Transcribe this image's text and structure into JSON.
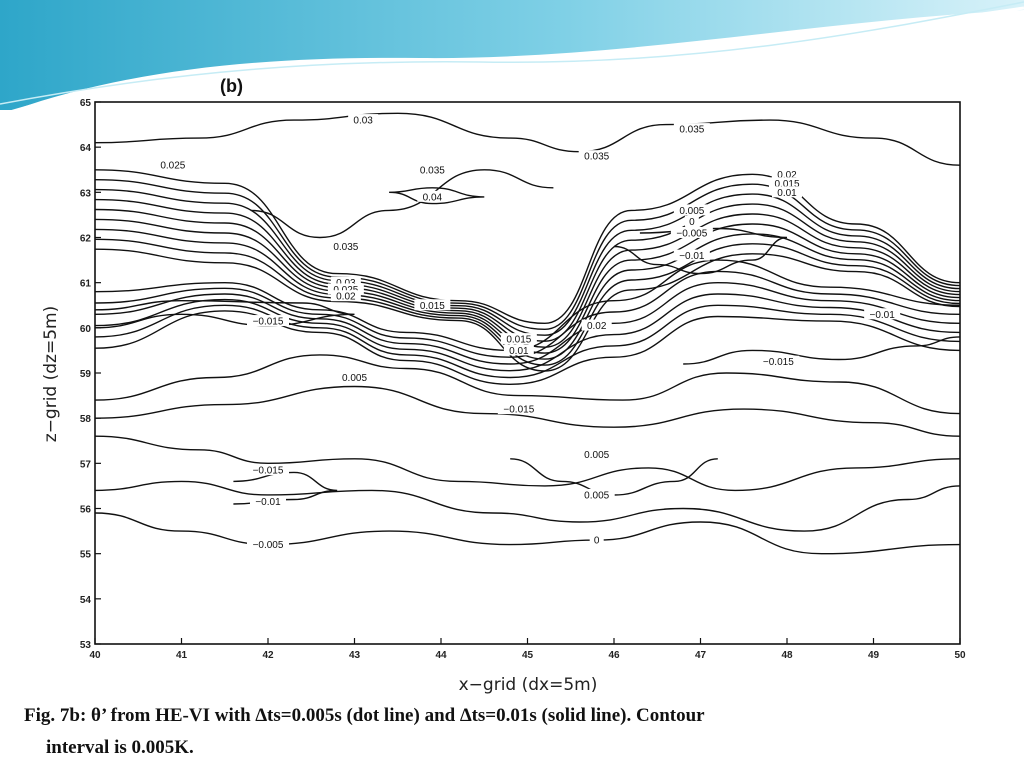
{
  "caption": {
    "line1": "Fig. 7b: θ’ from HE-VI with ∆ts=0.005s (dot line) and ∆ts=0.01s (solid line). Contour",
    "line2": "interval is 0.005K."
  },
  "chart_data": {
    "type": "contour",
    "panel_label": "(b)",
    "title": "",
    "xlabel": "x−grid  (dx=5m)",
    "ylabel": "z−grid  (dz=5m)",
    "xlim": [
      40,
      50
    ],
    "ylim": [
      53,
      65
    ],
    "x_ticks": [
      40,
      41,
      42,
      43,
      44,
      45,
      46,
      47,
      48,
      49,
      50
    ],
    "y_ticks": [
      53,
      54,
      55,
      56,
      57,
      58,
      59,
      60,
      61,
      62,
      63,
      64,
      65
    ],
    "contour_interval": 0.005,
    "contour_labels": [
      {
        "text": "0.03",
        "x": 43.1,
        "y": 64.6
      },
      {
        "text": "0.035",
        "x": 46.9,
        "y": 64.4
      },
      {
        "text": "0.025",
        "x": 40.9,
        "y": 63.6
      },
      {
        "text": "0.035",
        "x": 43.9,
        "y": 63.5
      },
      {
        "text": "0.035",
        "x": 45.8,
        "y": 63.8
      },
      {
        "text": "0.04",
        "x": 43.9,
        "y": 62.9
      },
      {
        "text": "0.02",
        "x": 48.0,
        "y": 63.4
      },
      {
        "text": "0.015",
        "x": 48.0,
        "y": 63.2
      },
      {
        "text": "0.01",
        "x": 48.0,
        "y": 63.0
      },
      {
        "text": "0.005",
        "x": 46.9,
        "y": 62.6
      },
      {
        "text": "0",
        "x": 46.9,
        "y": 62.35
      },
      {
        "text": "−0.005",
        "x": 46.9,
        "y": 62.1
      },
      {
        "text": "0.035",
        "x": 42.9,
        "y": 61.8
      },
      {
        "text": "−0.01",
        "x": 46.9,
        "y": 61.6
      },
      {
        "text": "0.03",
        "x": 42.9,
        "y": 61.0
      },
      {
        "text": "0.025",
        "x": 42.9,
        "y": 60.85
      },
      {
        "text": "0.02",
        "x": 42.9,
        "y": 60.7
      },
      {
        "text": "0.015",
        "x": 43.9,
        "y": 60.5
      },
      {
        "text": "−0.015",
        "x": 42.0,
        "y": 60.15
      },
      {
        "text": "0.02",
        "x": 45.8,
        "y": 60.05
      },
      {
        "text": "0.015",
        "x": 44.9,
        "y": 59.75
      },
      {
        "text": "0.01",
        "x": 44.9,
        "y": 59.5
      },
      {
        "text": "−0.01",
        "x": 49.1,
        "y": 60.3
      },
      {
        "text": "−0.015",
        "x": 47.9,
        "y": 59.25
      },
      {
        "text": "0.005",
        "x": 43.0,
        "y": 58.9
      },
      {
        "text": "−0.015",
        "x": 44.9,
        "y": 58.2
      },
      {
        "text": "0.005",
        "x": 45.8,
        "y": 57.2
      },
      {
        "text": "−0.015",
        "x": 42.0,
        "y": 56.85
      },
      {
        "text": "0.005",
        "x": 45.8,
        "y": 56.3
      },
      {
        "text": "−0.01",
        "x": 42.0,
        "y": 56.15
      },
      {
        "text": "−0.005",
        "x": 42.0,
        "y": 55.2
      },
      {
        "text": "0",
        "x": 45.8,
        "y": 55.3
      }
    ]
  },
  "colors": {
    "banner_dark": "#3aaecf",
    "banner_light": "#d6f1f8",
    "line": "#111111"
  }
}
